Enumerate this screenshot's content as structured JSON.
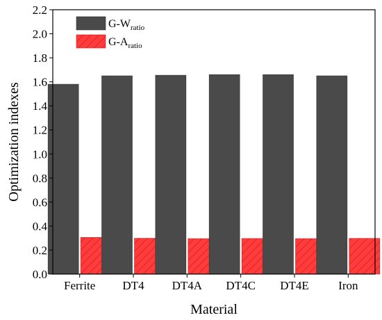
{
  "chart_data": {
    "type": "bar",
    "xlabel": "Material",
    "ylabel": "Optimization indexes",
    "ylim": [
      0,
      2.2
    ],
    "yticks": [
      "0.0",
      "0.2",
      "0.4",
      "0.6",
      "0.8",
      "1.0",
      "1.2",
      "1.4",
      "1.6",
      "1.8",
      "2.0",
      "2.2"
    ],
    "categories": [
      "Ferrite",
      "DT4",
      "DT4A",
      "DT4C",
      "DT4E",
      "Iron"
    ],
    "series": [
      {
        "legend_main": "G-W",
        "legend_sub": "ratio",
        "color": "#4a4a4a",
        "pattern": "solid",
        "values": [
          1.58,
          1.65,
          1.655,
          1.66,
          1.66,
          1.65
        ]
      },
      {
        "legend_main": "G-A",
        "legend_sub": "ratio",
        "color": "#ff3b3b",
        "pattern": "hatched",
        "values": [
          0.305,
          0.298,
          0.295,
          0.296,
          0.295,
          0.297
        ]
      }
    ],
    "grid": false,
    "legend_position": "top-left"
  }
}
